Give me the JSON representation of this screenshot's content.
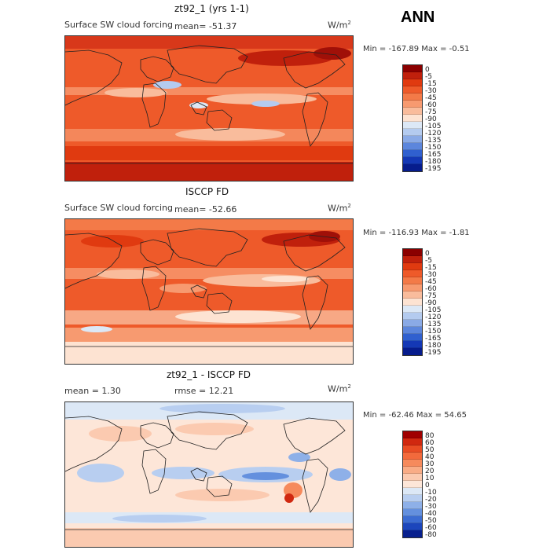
{
  "season": "ANN",
  "panels": [
    {
      "title": "zt92_1 (yrs 1-1)",
      "field": "Surface SW cloud forcing",
      "left_stat": "mean=  -51.37",
      "right_stat": "",
      "units": "W/m",
      "units_sup": "2",
      "minmax": "Min = -167.89 Max =   -0.51",
      "cbar": {
        "labels": [
          "0",
          "-5",
          "-15",
          "-30",
          "-45",
          "-60",
          "-75",
          "-90",
          "-105",
          "-120",
          "-135",
          "-150",
          "-165",
          "-180",
          "-195"
        ],
        "colors": [
          "#8b0000",
          "#c0200c",
          "#e03a10",
          "#ee5a2a",
          "#f37a48",
          "#f79a70",
          "#f9bc9c",
          "#fde3d2",
          "#dce8f6",
          "#b4cbef",
          "#8aaae6",
          "#5c86dc",
          "#3060cf",
          "#1438b5",
          "#061c8c"
        ]
      }
    },
    {
      "title": "ISCCP FD",
      "field": "Surface SW cloud forcing",
      "left_stat": "mean=  -52.66",
      "right_stat": "",
      "units": "W/m",
      "units_sup": "2",
      "minmax": "Min = -116.93 Max =   -1.81",
      "cbar": {
        "labels": [
          "0",
          "-5",
          "-15",
          "-30",
          "-45",
          "-60",
          "-75",
          "-90",
          "-105",
          "-120",
          "-135",
          "-150",
          "-165",
          "-180",
          "-195"
        ],
        "colors": [
          "#8b0000",
          "#c0200c",
          "#e03a10",
          "#ee5a2a",
          "#f37a48",
          "#f79a70",
          "#f9bc9c",
          "#fde3d2",
          "#dce8f6",
          "#b4cbef",
          "#8aaae6",
          "#5c86dc",
          "#3060cf",
          "#1438b5",
          "#061c8c"
        ]
      }
    },
    {
      "title": "zt92_1 - ISCCP FD",
      "field": "mean =    1.30",
      "left_stat": "",
      "right_stat": "rmse =   12.21",
      "units": "W/m",
      "units_sup": "2",
      "minmax": "Min = -62.46 Max =  54.65",
      "cbar": {
        "labels": [
          "80",
          "60",
          "50",
          "40",
          "30",
          "20",
          "10",
          "0",
          "-10",
          "-20",
          "-30",
          "-40",
          "-50",
          "-60",
          "-80"
        ],
        "colors": [
          "#a00000",
          "#d02810",
          "#e84c24",
          "#f26a3c",
          "#f68a5c",
          "#f9ac86",
          "#fbcab0",
          "#fde6d8",
          "#dce8f6",
          "#b8cef0",
          "#8eb0e8",
          "#6490de",
          "#3c6cd2",
          "#1c46bc",
          "#08208e"
        ]
      }
    }
  ]
}
